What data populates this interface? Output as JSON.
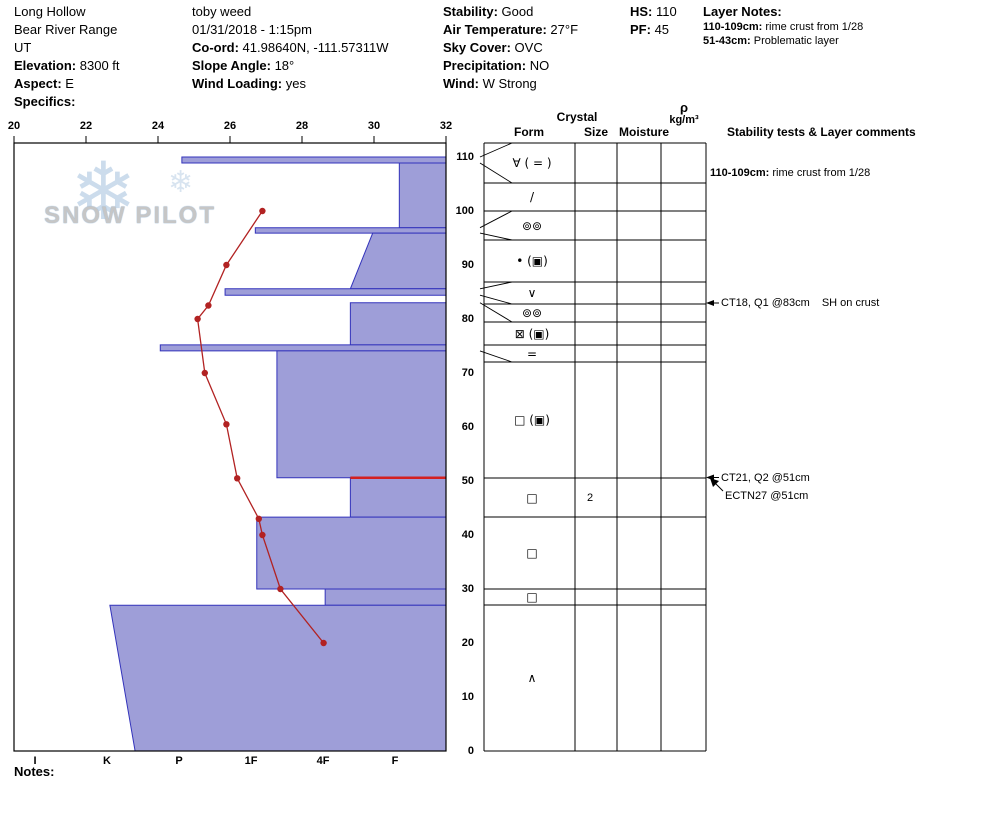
{
  "header": {
    "location": {
      "lines": [
        {
          "label": "",
          "value": "Long Hollow"
        },
        {
          "label": "",
          "value": "Bear River Range"
        },
        {
          "label": "",
          "value": "UT"
        },
        {
          "label": "Elevation:",
          "value": "8300 ft"
        },
        {
          "label": "Aspect:",
          "value": "E"
        },
        {
          "label": "Specifics:",
          "value": ""
        }
      ]
    },
    "observer": {
      "lines": [
        {
          "label": "",
          "value": "toby weed"
        },
        {
          "label": "",
          "value": "01/31/2018 - 1:15pm"
        },
        {
          "label": "Co-ord:",
          "value": "41.98640N, -111.57311W"
        },
        {
          "label": "Slope Angle:",
          "value": "18°"
        },
        {
          "label": "Wind Loading:",
          "value": "yes"
        }
      ]
    },
    "conditions": {
      "lines": [
        {
          "label": "Stability:",
          "value": "Good"
        },
        {
          "label": "Air Temperature:",
          "value": "27°F"
        },
        {
          "label": "Sky Cover:",
          "value": "OVC"
        },
        {
          "label": "Precipitation:",
          "value": "NO"
        },
        {
          "label": "Wind:",
          "value": "W Strong"
        }
      ]
    },
    "snow_depth": {
      "lines": [
        {
          "label": "HS:",
          "value": "110"
        },
        {
          "label": "PF:",
          "value": "45"
        }
      ]
    },
    "layer_notes": {
      "title": "Layer Notes:",
      "lines": [
        {
          "label": "110-109cm:",
          "value": "rime crust from 1/28"
        },
        {
          "label": "51-43cm:",
          "value": "Problematic layer"
        }
      ]
    }
  },
  "watermark": {
    "text": "SNOW PILOT"
  },
  "panel": {
    "crystal_header": "Crystal",
    "columns": {
      "form": "Form",
      "size": "Size",
      "moisture": "Moisture",
      "density": "ρ",
      "density_units": "kg/m³",
      "comments": "Stability tests & Layer comments"
    },
    "top_comment": {
      "label": "110-109cm:",
      "value": "rime crust from 1/28"
    },
    "tests": [
      {
        "label": "CT18, Q1 @83cm",
        "note": "SH on crust",
        "arrow": "left",
        "depth_cm": 83
      },
      {
        "label": "CT21, Q2 @51cm",
        "note": "",
        "arrow": "left",
        "depth_cm": 51
      },
      {
        "label": "ECTN27 @51cm",
        "note": "",
        "arrow": "diagonal",
        "depth_cm": 51
      }
    ]
  },
  "notes_label": "Notes:",
  "chart_data": {
    "type": "snow-profile",
    "title": "Snow pit profile: hand hardness bars, temperature line, crystal forms",
    "temp_axis": {
      "unit": "F",
      "position": "top",
      "ticks": [
        20,
        22,
        24,
        26,
        28,
        30,
        32
      ]
    },
    "depth_axis": {
      "unit": "cm",
      "position": "right",
      "snow_height": 110,
      "ticks": [
        110,
        100,
        90,
        80,
        70,
        60,
        50,
        40,
        30,
        20,
        10,
        0
      ]
    },
    "hardness_axis": {
      "position": "bottom",
      "labels": [
        "I",
        "K",
        "P",
        "1F",
        "4F",
        "F"
      ],
      "note": "hand hardness, I hardest at left, index 0=I to 5=F"
    },
    "layers": [
      {
        "top_cm": 110,
        "bottom_cm": 108.9,
        "hardness": "P",
        "hp_top": 2.04,
        "hp_bot": 2.04
      },
      {
        "top_cm": 108.9,
        "bottom_cm": 96.9,
        "hardness": "F",
        "hp_top": 5.06,
        "hp_bot": 5.06
      },
      {
        "top_cm": 96.9,
        "bottom_cm": 95.9,
        "hardness": "1F",
        "hp_top": 3.06,
        "hp_bot": 3.06
      },
      {
        "top_cm": 95.9,
        "bottom_cm": 85.6,
        "hardness": "4F-F",
        "hp_top": 4.69,
        "hp_bot": 4.38
      },
      {
        "top_cm": 85.6,
        "bottom_cm": 84.4,
        "hardness": "P-1F",
        "hp_top": 2.64,
        "hp_bot": 2.64
      },
      {
        "top_cm": 84.4,
        "bottom_cm": 83.0,
        "hardness": "surface hoar layer (no bar)",
        "hp_top": null,
        "hp_bot": null
      },
      {
        "top_cm": 83.0,
        "bottom_cm": 75.2,
        "hardness": "4F-F",
        "hp_top": 4.38,
        "hp_bot": 4.38
      },
      {
        "top_cm": 75.2,
        "bottom_cm": 74.1,
        "hardness": "K-P",
        "hp_top": 1.74,
        "hp_bot": 1.74
      },
      {
        "top_cm": 74.1,
        "bottom_cm": 50.6,
        "hardness": "1F-4F",
        "hp_top": 3.36,
        "hp_bot": 3.36
      },
      {
        "top_cm": 50.6,
        "bottom_cm": 43.3,
        "hardness": "4F-F",
        "hp_top": 4.38,
        "hp_bot": 4.38,
        "top_boundary_red": true
      },
      {
        "top_cm": 43.3,
        "bottom_cm": 30,
        "hardness": "1F",
        "hp_top": 3.08,
        "hp_bot": 3.08
      },
      {
        "top_cm": 30,
        "bottom_cm": 27,
        "hardness": "4F",
        "hp_top": 4.03,
        "hp_bot": 4.03
      },
      {
        "top_cm": 27,
        "bottom_cm": 0,
        "hardness": "K",
        "hp_top": 1.04,
        "hp_bot": 1.39
      }
    ],
    "temperature_profile_f": [
      {
        "temp_f": 26.9,
        "depth_cm": 100
      },
      {
        "temp_f": 25.9,
        "depth_cm": 90
      },
      {
        "temp_f": 25.4,
        "depth_cm": 82.5
      },
      {
        "temp_f": 25.1,
        "depth_cm": 80
      },
      {
        "temp_f": 25.3,
        "depth_cm": 70
      },
      {
        "temp_f": 25.9,
        "depth_cm": 60.5
      },
      {
        "temp_f": 26.2,
        "depth_cm": 50.5
      },
      {
        "temp_f": 26.8,
        "depth_cm": 43
      },
      {
        "temp_f": 26.9,
        "depth_cm": 40
      },
      {
        "temp_f": 27.4,
        "depth_cm": 30
      },
      {
        "temp_f": 28.6,
        "depth_cm": 20
      }
    ],
    "form_rows": [
      {
        "form": "∀ ( = )",
        "size": "",
        "moisture": "",
        "density": ""
      },
      {
        "form": "/",
        "size": "",
        "moisture": "",
        "density": ""
      },
      {
        "form": "⊚⊚",
        "size": "",
        "moisture": "",
        "density": ""
      },
      {
        "form": "• (▣)",
        "size": "",
        "moisture": "",
        "density": ""
      },
      {
        "form": "∨",
        "size": "",
        "moisture": "",
        "density": ""
      },
      {
        "form": "⊚⊚",
        "size": "",
        "moisture": "",
        "density": ""
      },
      {
        "form": "⊠ (▣)",
        "size": "",
        "moisture": "",
        "density": ""
      },
      {
        "form": "=",
        "size": "",
        "moisture": "",
        "density": ""
      },
      {
        "form": "□ (▣)",
        "size": "",
        "moisture": "",
        "density": ""
      },
      {
        "form": "□",
        "size": "2",
        "moisture": "",
        "density": ""
      },
      {
        "form": "□",
        "size": "",
        "moisture": "",
        "density": ""
      },
      {
        "form": "□",
        "size": "",
        "moisture": "",
        "density": ""
      },
      {
        "form": "∧",
        "size": "",
        "moisture": "",
        "density": ""
      }
    ],
    "legend_position": "none",
    "grid": false
  }
}
